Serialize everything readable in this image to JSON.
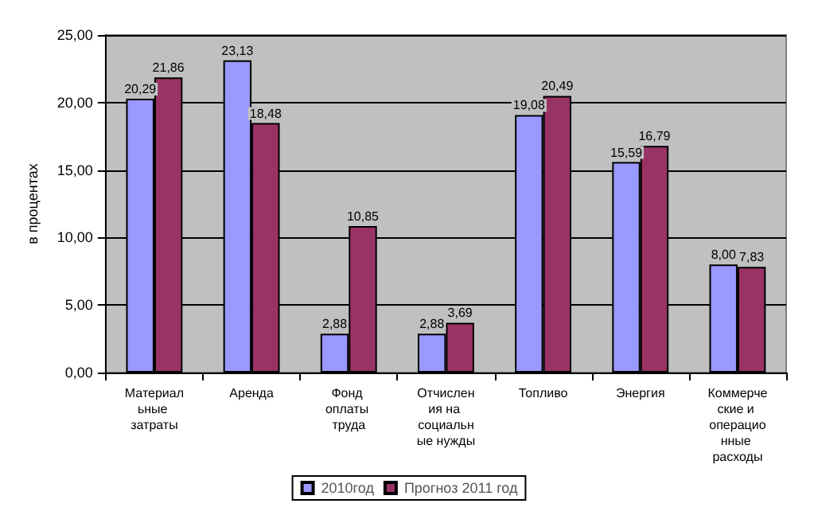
{
  "chart_data": {
    "type": "bar",
    "ylabel": "в процентах",
    "categories": [
      "Материальные затраты",
      "Аренда",
      "Фонд оплаты труда",
      "Отчисления на социальные нужды",
      "Топливо",
      "Энергия",
      "Коммерческие и операционные расходы"
    ],
    "series": [
      {
        "name": "2010год",
        "color": "#9999ff",
        "values": [
          20.29,
          23.13,
          2.88,
          2.88,
          19.08,
          15.59,
          8.0
        ],
        "value_labels": [
          "20,29",
          "23,13",
          "2,88",
          "2,88",
          "19,08",
          "15,59",
          "8,00"
        ]
      },
      {
        "name": "Прогноз 2011 год",
        "color": "#993366",
        "values": [
          21.86,
          18.48,
          10.85,
          3.69,
          20.49,
          16.79,
          7.83
        ],
        "value_labels": [
          "21,86",
          "18,48",
          "10,85",
          "3,69",
          "20,49",
          "16,79",
          "7,83"
        ]
      }
    ],
    "ylim": [
      0,
      25
    ],
    "yticks": [
      {
        "value": 0,
        "label": "0,00"
      },
      {
        "value": 5,
        "label": "5,00"
      },
      {
        "value": 10,
        "label": "10,00"
      },
      {
        "value": 15,
        "label": "15,00"
      },
      {
        "value": 20,
        "label": "20,00"
      },
      {
        "value": 25,
        "label": "25,00"
      }
    ],
    "grid": "y",
    "legend": "bottom"
  }
}
